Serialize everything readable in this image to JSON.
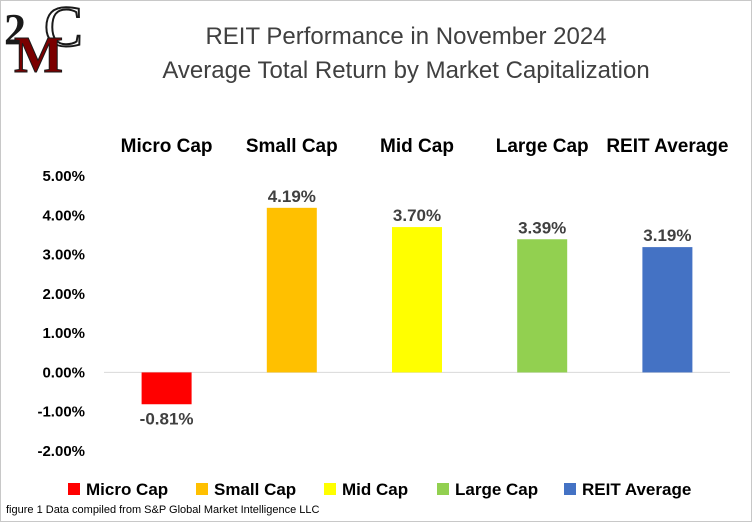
{
  "title": {
    "line1": "REIT Performance in November 2024",
    "line2": "Average Total Return by Market Capitalization"
  },
  "logo": {
    "text_top": "2",
    "text_main": "M",
    "text_c": "C",
    "colors": {
      "main": "#7a0000",
      "outline": "#1a1a1a"
    }
  },
  "footnote": "figure 1 Data compiled from S&P Global Market Intelligence LLC",
  "chart_data": {
    "type": "bar",
    "title": "REIT Performance in November 2024 Average Total Return by Market Capitalization",
    "categories": [
      "Micro Cap",
      "Small Cap",
      "Mid Cap",
      "Large Cap",
      "REIT Average"
    ],
    "values": [
      -0.81,
      4.19,
      3.7,
      3.39,
      3.19
    ],
    "data_labels": [
      "-0.81%",
      "4.19%",
      "3.70%",
      "3.39%",
      "3.19%"
    ],
    "colors": [
      "#ff0000",
      "#ffc000",
      "#ffff00",
      "#92d050",
      "#4472c4"
    ],
    "ylim": [
      -2,
      5
    ],
    "yticks": [
      5,
      4,
      3,
      2,
      1,
      0,
      -1,
      -2
    ],
    "ytick_labels": [
      "5.00%",
      "4.00%",
      "3.00%",
      "2.00%",
      "1.00%",
      "0.00%",
      "-1.00%",
      "-2.00%"
    ],
    "category_labels_position": "top",
    "grid": false,
    "legend": {
      "position": "bottom",
      "entries": [
        "Micro Cap",
        "Small Cap",
        "Mid Cap",
        "Large Cap",
        "REIT Average"
      ]
    },
    "xlabel": "",
    "ylabel": ""
  }
}
